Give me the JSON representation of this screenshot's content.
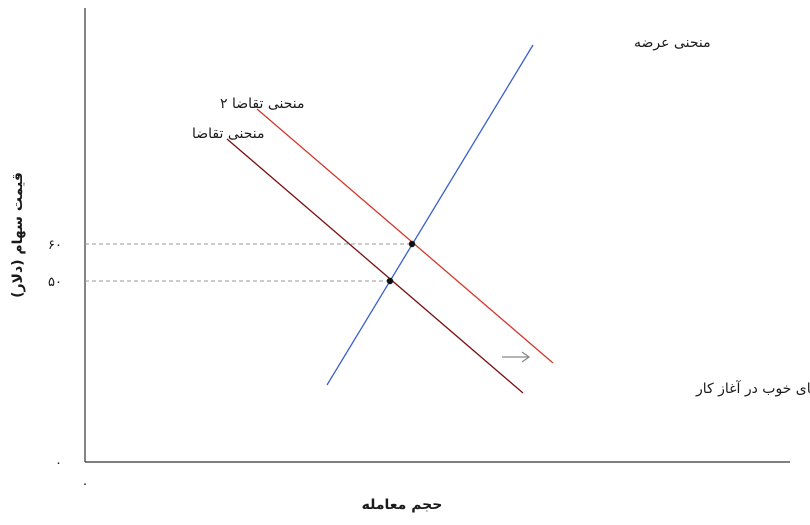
{
  "diagram": {
    "x_axis_title": "حجم معامله",
    "y_axis_title": "قیمت سهام (دلار)",
    "origin_x_label": "۰",
    "origin_y_label": "۰",
    "tick_60": "۶۰",
    "tick_50": "۵۰",
    "supply_label": "منحنی عرضه",
    "demand_label": "منحنی تقاضا",
    "demand2_label": "منحنی تقاضا ۲",
    "news_label": "خبرهای خوب در آغاز کار"
  },
  "colors": {
    "supply": "#3a5fcd",
    "demand": "#7a1010",
    "demand2": "#d43a2a",
    "guide": "#999999",
    "arrow": "#888888",
    "axis": "#333333"
  }
}
